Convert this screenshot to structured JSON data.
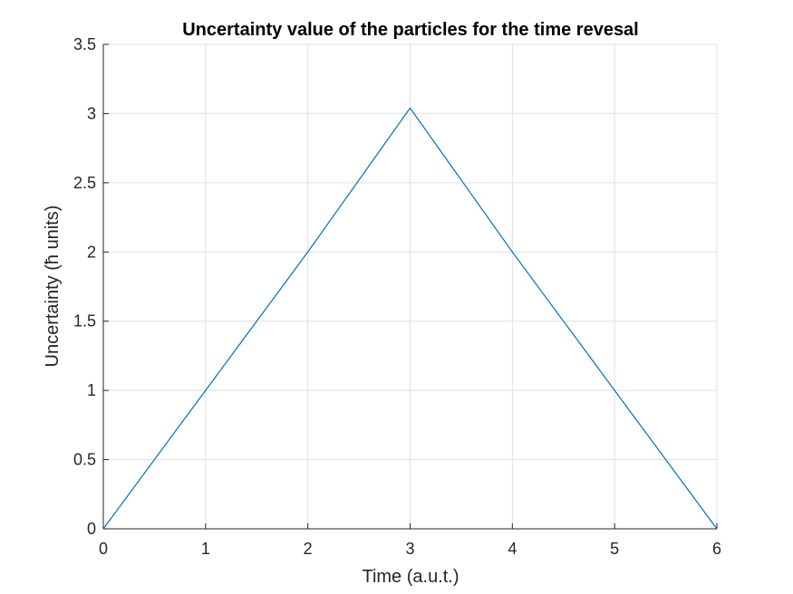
{
  "chart_data": {
    "type": "line",
    "title": "Uncertainty value of the particles for the time revesal",
    "xlabel": "Time (a.u.t.)",
    "ylabel": "Uncertainty (ħ units)",
    "xlim": [
      0,
      6
    ],
    "ylim": [
      0,
      3.5
    ],
    "xticks": [
      0,
      1,
      2,
      3,
      4,
      5,
      6
    ],
    "xtick_labels": [
      "0",
      "1",
      "2",
      "3",
      "4",
      "5",
      "6"
    ],
    "yticks": [
      0,
      0.5,
      1,
      1.5,
      2,
      2.5,
      3,
      3.5
    ],
    "ytick_labels": [
      "0",
      "0.5",
      "1",
      "1.5",
      "2",
      "2.5",
      "3",
      "3.5"
    ],
    "grid": true,
    "legend": "none",
    "series": [
      {
        "color": "#0072bd",
        "x": [
          0,
          1,
          2,
          3,
          4,
          5,
          6
        ],
        "y": [
          0,
          1,
          2,
          3.04,
          2,
          1,
          0
        ]
      }
    ]
  }
}
